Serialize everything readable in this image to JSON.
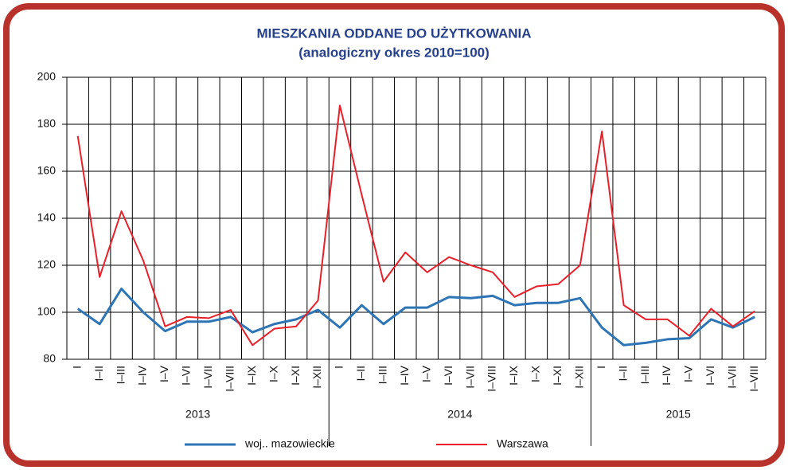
{
  "chart_data": {
    "type": "line",
    "title": "MIESZKANIA ODDANE DO UŻYTKOWANIA",
    "subtitle": "(analogiczny okres 2010=100)",
    "categories": [
      "I",
      "I–II",
      "I–III",
      "I–IV",
      "I–V",
      "I–VI",
      "I–VII",
      "I–VIII",
      "I–IX",
      "I–X",
      "I–XI",
      "I–XII",
      "I",
      "I–II",
      "I–III",
      "I–IV",
      "I–V",
      "I–VI",
      "I–VII",
      "I–VIII",
      "I–IX",
      "I–X",
      "I–XI",
      "I–XII",
      "I",
      "I–II",
      "I–III",
      "I–IV",
      "I–V",
      "I–VI",
      "I–VII",
      "I–VIII"
    ],
    "groups": [
      "2013",
      "2014",
      "2015"
    ],
    "series": [
      {
        "name": "woj.. mazowieckie",
        "color": "#2e75b6",
        "values": [
          101.5,
          95,
          110,
          100,
          92,
          96,
          96,
          98,
          91.5,
          95,
          97,
          101,
          93.5,
          103,
          95,
          102,
          102,
          106.5,
          106,
          107,
          103,
          104,
          104,
          106,
          93.5,
          86,
          87,
          88.5,
          89,
          97,
          93.5,
          98
        ]
      },
      {
        "name": "Warszawa",
        "color": "#e8202a",
        "values": [
          175,
          115,
          143,
          122,
          94,
          98,
          97.5,
          101,
          86,
          93,
          94,
          105,
          188,
          150,
          113,
          125.5,
          117,
          123.5,
          120,
          117,
          106.5,
          111,
          112,
          120,
          177,
          103,
          97,
          97,
          90,
          101.5,
          94,
          100.5
        ]
      }
    ],
    "ylim": [
      80,
      200
    ],
    "yticks": [
      80,
      100,
      120,
      140,
      160,
      180,
      200
    ],
    "grid": true
  }
}
